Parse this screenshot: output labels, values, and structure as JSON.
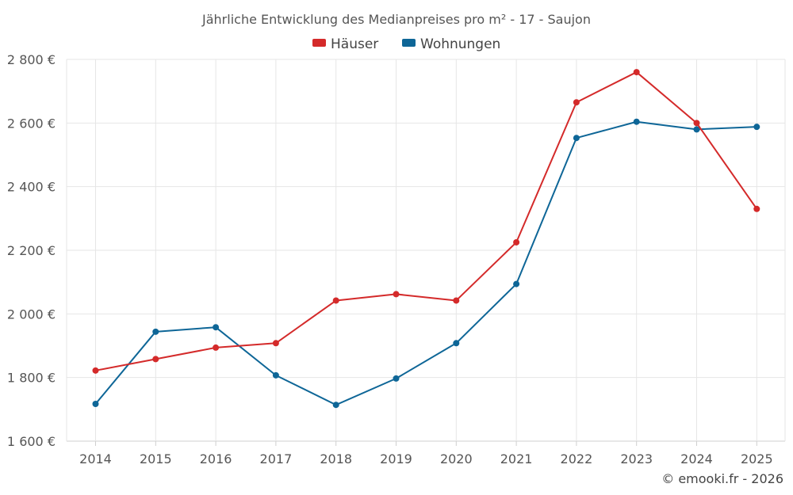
{
  "chart_data": {
    "type": "line",
    "title": "Jährliche Entwicklung des Medianpreises pro m² - 17 - Saujon",
    "xlabel": "",
    "ylabel": "",
    "categories": [
      "2014",
      "2015",
      "2016",
      "2017",
      "2018",
      "2019",
      "2020",
      "2021",
      "2022",
      "2023",
      "2024",
      "2025"
    ],
    "ylim": [
      1600,
      2800
    ],
    "yticks": [
      1600,
      1800,
      2000,
      2200,
      2400,
      2600,
      2800
    ],
    "ytick_labels": [
      "1 600 €",
      "1 800 €",
      "2 000 €",
      "2 200 €",
      "2 400 €",
      "2 600 €",
      "2 800 €"
    ],
    "grid": true,
    "legend_position": "top-center",
    "series": [
      {
        "name": "Häuser",
        "color": "#d42a2a",
        "values": [
          1822,
          1858,
          1894,
          1908,
          2042,
          2062,
          2042,
          2225,
          2665,
          2760,
          2600,
          2330
        ]
      },
      {
        "name": "Wohnungen",
        "color": "#0e6697",
        "values": [
          1717,
          1944,
          1958,
          1807,
          1714,
          1797,
          1908,
          2094,
          2553,
          2604,
          2580,
          2588
        ]
      }
    ]
  },
  "credit": "© emooki.fr - 2026"
}
